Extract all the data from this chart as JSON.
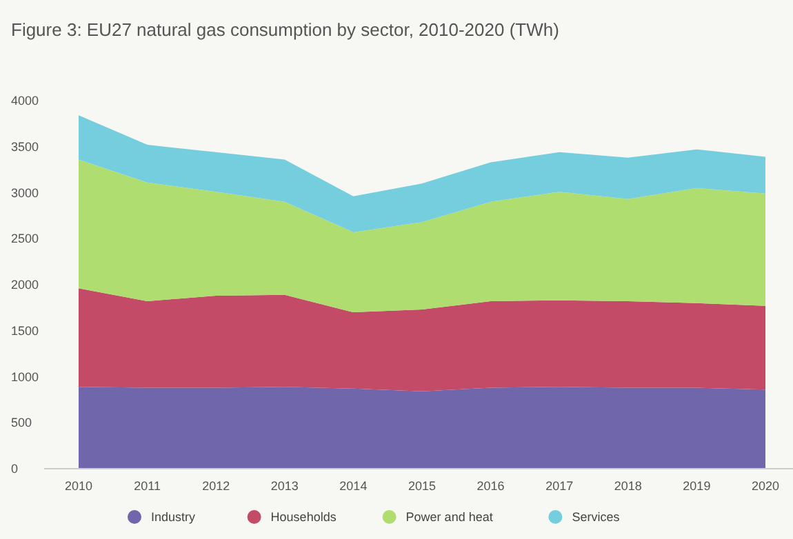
{
  "chart_data": {
    "type": "area",
    "stacked": true,
    "title": "Figure 3: EU27 natural gas consumption by sector, 2010-2020 (TWh)",
    "categories": [
      "2010",
      "2011",
      "2012",
      "2013",
      "2014",
      "2015",
      "2016",
      "2017",
      "2018",
      "2019",
      "2020"
    ],
    "series": [
      {
        "name": "Industry",
        "color": "#7066ab",
        "values": [
          890,
          880,
          880,
          890,
          870,
          840,
          880,
          890,
          880,
          880,
          860
        ]
      },
      {
        "name": "Households",
        "color": "#c44b68",
        "values": [
          1070,
          940,
          1000,
          1000,
          830,
          890,
          940,
          940,
          940,
          920,
          910
        ]
      },
      {
        "name": "Power and heat",
        "color": "#afdd6f",
        "values": [
          1400,
          1290,
          1130,
          1010,
          870,
          950,
          1080,
          1180,
          1110,
          1250,
          1220
        ]
      },
      {
        "name": "Services",
        "color": "#74cedd",
        "values": [
          480,
          410,
          430,
          460,
          390,
          420,
          430,
          430,
          450,
          420,
          400
        ]
      }
    ],
    "ylim": [
      0,
      4000
    ],
    "yticks": [
      0,
      500,
      1000,
      1500,
      2000,
      2500,
      3000,
      3500,
      4000
    ],
    "legend": "bottom",
    "grid": false
  }
}
